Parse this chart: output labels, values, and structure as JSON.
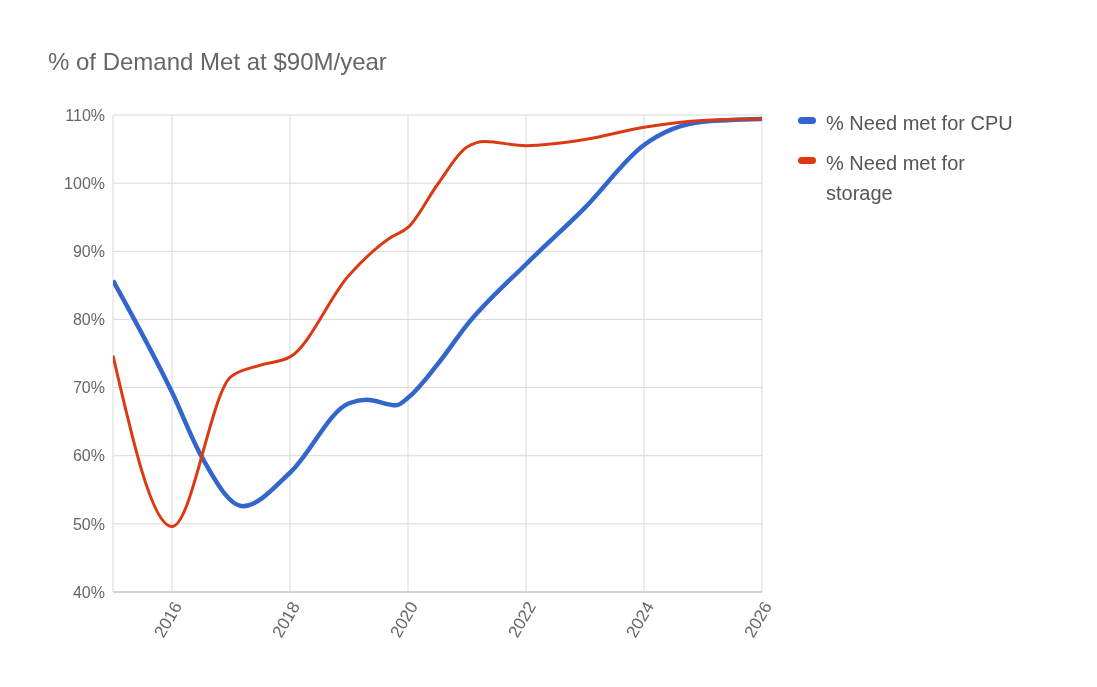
{
  "chart_data": {
    "type": "line",
    "title": "% of Demand Met at $90M/year",
    "xlim": [
      2015,
      2026
    ],
    "xticks": [
      2016,
      2018,
      2020,
      2022,
      2024,
      2026
    ],
    "ylim": [
      40,
      110
    ],
    "yticks": [
      {
        "value": 40,
        "label": "40%"
      },
      {
        "value": 50,
        "label": "50%"
      },
      {
        "value": 60,
        "label": "60%"
      },
      {
        "value": 70,
        "label": "70%"
      },
      {
        "value": 80,
        "label": "80%"
      },
      {
        "value": 90,
        "label": "90%"
      },
      {
        "value": 100,
        "label": "100%"
      },
      {
        "value": 110,
        "label": "110%"
      }
    ],
    "grid": true,
    "legend": "top right",
    "marker": "none",
    "line_style": "solid",
    "series": [
      {
        "name": "% Need met for CPU",
        "color": "#3366cc",
        "x": [
          2015,
          2016,
          2016.5,
          2017.2,
          2018,
          2019,
          2019.3,
          2019.8,
          2020,
          2020.5,
          2021,
          2022,
          2023,
          2024,
          2025,
          2026
        ],
        "values": [
          85.7,
          69.3,
          59.9,
          52.6,
          57.5,
          67.7,
          68.2,
          67.4,
          68.5,
          73.4,
          79.2,
          88.1,
          96.4,
          105.6,
          109,
          109.4
        ]
      },
      {
        "name": "% Need met for storage",
        "color": "#dc3912",
        "x": [
          2015,
          2016,
          2017,
          2017.5,
          2018,
          2019,
          2019.7,
          2020,
          2020.5,
          2021,
          2021.3,
          2022,
          2023,
          2024,
          2025,
          2026
        ],
        "values": [
          74.7,
          49.6,
          71.6,
          73.3,
          74.5,
          86.5,
          92,
          93.5,
          99.8,
          105.3,
          106.1,
          105.5,
          106.4,
          108.2,
          109.2,
          109.4
        ]
      }
    ]
  }
}
